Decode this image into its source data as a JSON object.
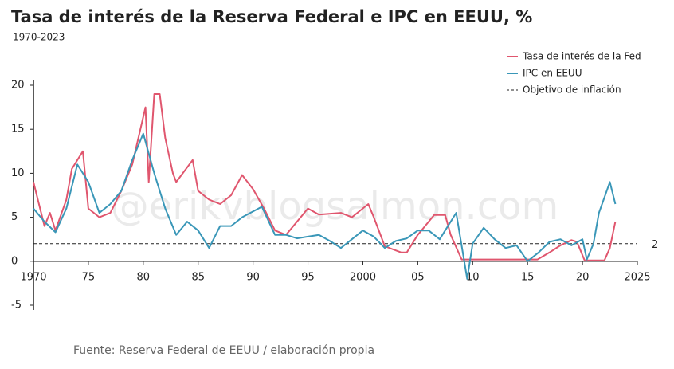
{
  "chart_data": {
    "type": "line",
    "title": "Tasa de interés de la Reserva Federal e IPC en EEUU, %",
    "subtitle": "1970-2023",
    "source": "Fuente: Reserva Federal de EEUU / elaboración propia",
    "watermark": "@erikvblogsalmon.com",
    "xlim": [
      1970,
      2025
    ],
    "xticks": [
      1970,
      {
        "value": 1975,
        "label": "75"
      },
      {
        "value": 1980,
        "label": "80"
      },
      {
        "value": 1985,
        "label": "85"
      },
      {
        "value": 1990,
        "label": "90"
      },
      {
        "value": 1995,
        "label": "95"
      },
      2000,
      {
        "value": 2005,
        "label": "05"
      },
      {
        "value": 2010,
        "label": "10"
      },
      {
        "value": 2015,
        "label": "15"
      },
      {
        "value": 2020,
        "label": "20"
      },
      2025
    ],
    "ylim": [
      -5,
      20
    ],
    "yticks": [
      -5,
      0,
      5,
      10,
      15,
      20
    ],
    "grid": false,
    "legend": "top-right",
    "series": [
      {
        "name": "Tasa de interés de la Fed",
        "color": "#e0566e",
        "x": [
          1970,
          1970.5,
          1971,
          1971.5,
          1972,
          1973,
          1973.5,
          1974.5,
          1975,
          1976,
          1977,
          1978,
          1979,
          1980.2,
          1980.5,
          1981,
          1981.5,
          1982,
          1982.7,
          1983,
          1984.5,
          1985,
          1986,
          1987,
          1988,
          1989,
          1990,
          1991,
          1992,
          1993,
          1994,
          1995,
          1996,
          1998,
          1999,
          2000.5,
          2001,
          2002,
          2003.5,
          2004,
          2005,
          2006.5,
          2007.5,
          2008,
          2009,
          2015.9,
          2017,
          2018,
          2019,
          2019.5,
          2020.2,
          2022,
          2022.5,
          2023
        ],
        "values": [
          9,
          6.5,
          4,
          5.5,
          3.5,
          7,
          10.5,
          12.5,
          6,
          5,
          5.5,
          8,
          11,
          17.5,
          9,
          19,
          19,
          14,
          10,
          9,
          11.5,
          8,
          7,
          6.5,
          7.5,
          9.8,
          8.2,
          6,
          3.5,
          3,
          4.5,
          6,
          5.3,
          5.5,
          5,
          6.5,
          5,
          1.7,
          1,
          1,
          3,
          5.25,
          5.25,
          3,
          0.2,
          0.2,
          1,
          1.8,
          2.4,
          2.2,
          0.1,
          0.1,
          1.5,
          4.5
        ]
      },
      {
        "name": "IPC en EEUU",
        "color": "#3a97b8",
        "x": [
          1970,
          1971,
          1972,
          1973,
          1974,
          1975,
          1976,
          1977,
          1978,
          1979,
          1980,
          1981,
          1982,
          1983,
          1984,
          1985,
          1986,
          1987,
          1988,
          1989,
          1990.8,
          1992,
          1993,
          1994,
          1995,
          1996,
          1997,
          1998,
          1999,
          2000,
          2001,
          2002,
          2003,
          2004,
          2005,
          2006,
          2007,
          2008.5,
          2009.5,
          2010,
          2011,
          2012,
          2013,
          2014,
          2015,
          2016,
          2017,
          2018,
          2019,
          2020,
          2020.4,
          2021,
          2021.5,
          2022.5,
          2023
        ],
        "values": [
          6,
          4.5,
          3.3,
          6,
          11,
          9,
          5.5,
          6.5,
          8,
          11.5,
          14.5,
          10,
          6,
          3,
          4.5,
          3.5,
          1.5,
          4,
          4,
          5,
          6.2,
          3,
          3,
          2.6,
          2.8,
          3,
          2.3,
          1.5,
          2.5,
          3.5,
          2.8,
          1.5,
          2.3,
          2.6,
          3.5,
          3.5,
          2.5,
          5.5,
          -2,
          2,
          3.8,
          2.5,
          1.5,
          1.8,
          0,
          1,
          2.2,
          2.5,
          1.8,
          2.5,
          0.2,
          2,
          5.5,
          9,
          6.5
        ]
      }
    ],
    "target": {
      "name": "Objetivo de inflación",
      "value": 2
    }
  }
}
